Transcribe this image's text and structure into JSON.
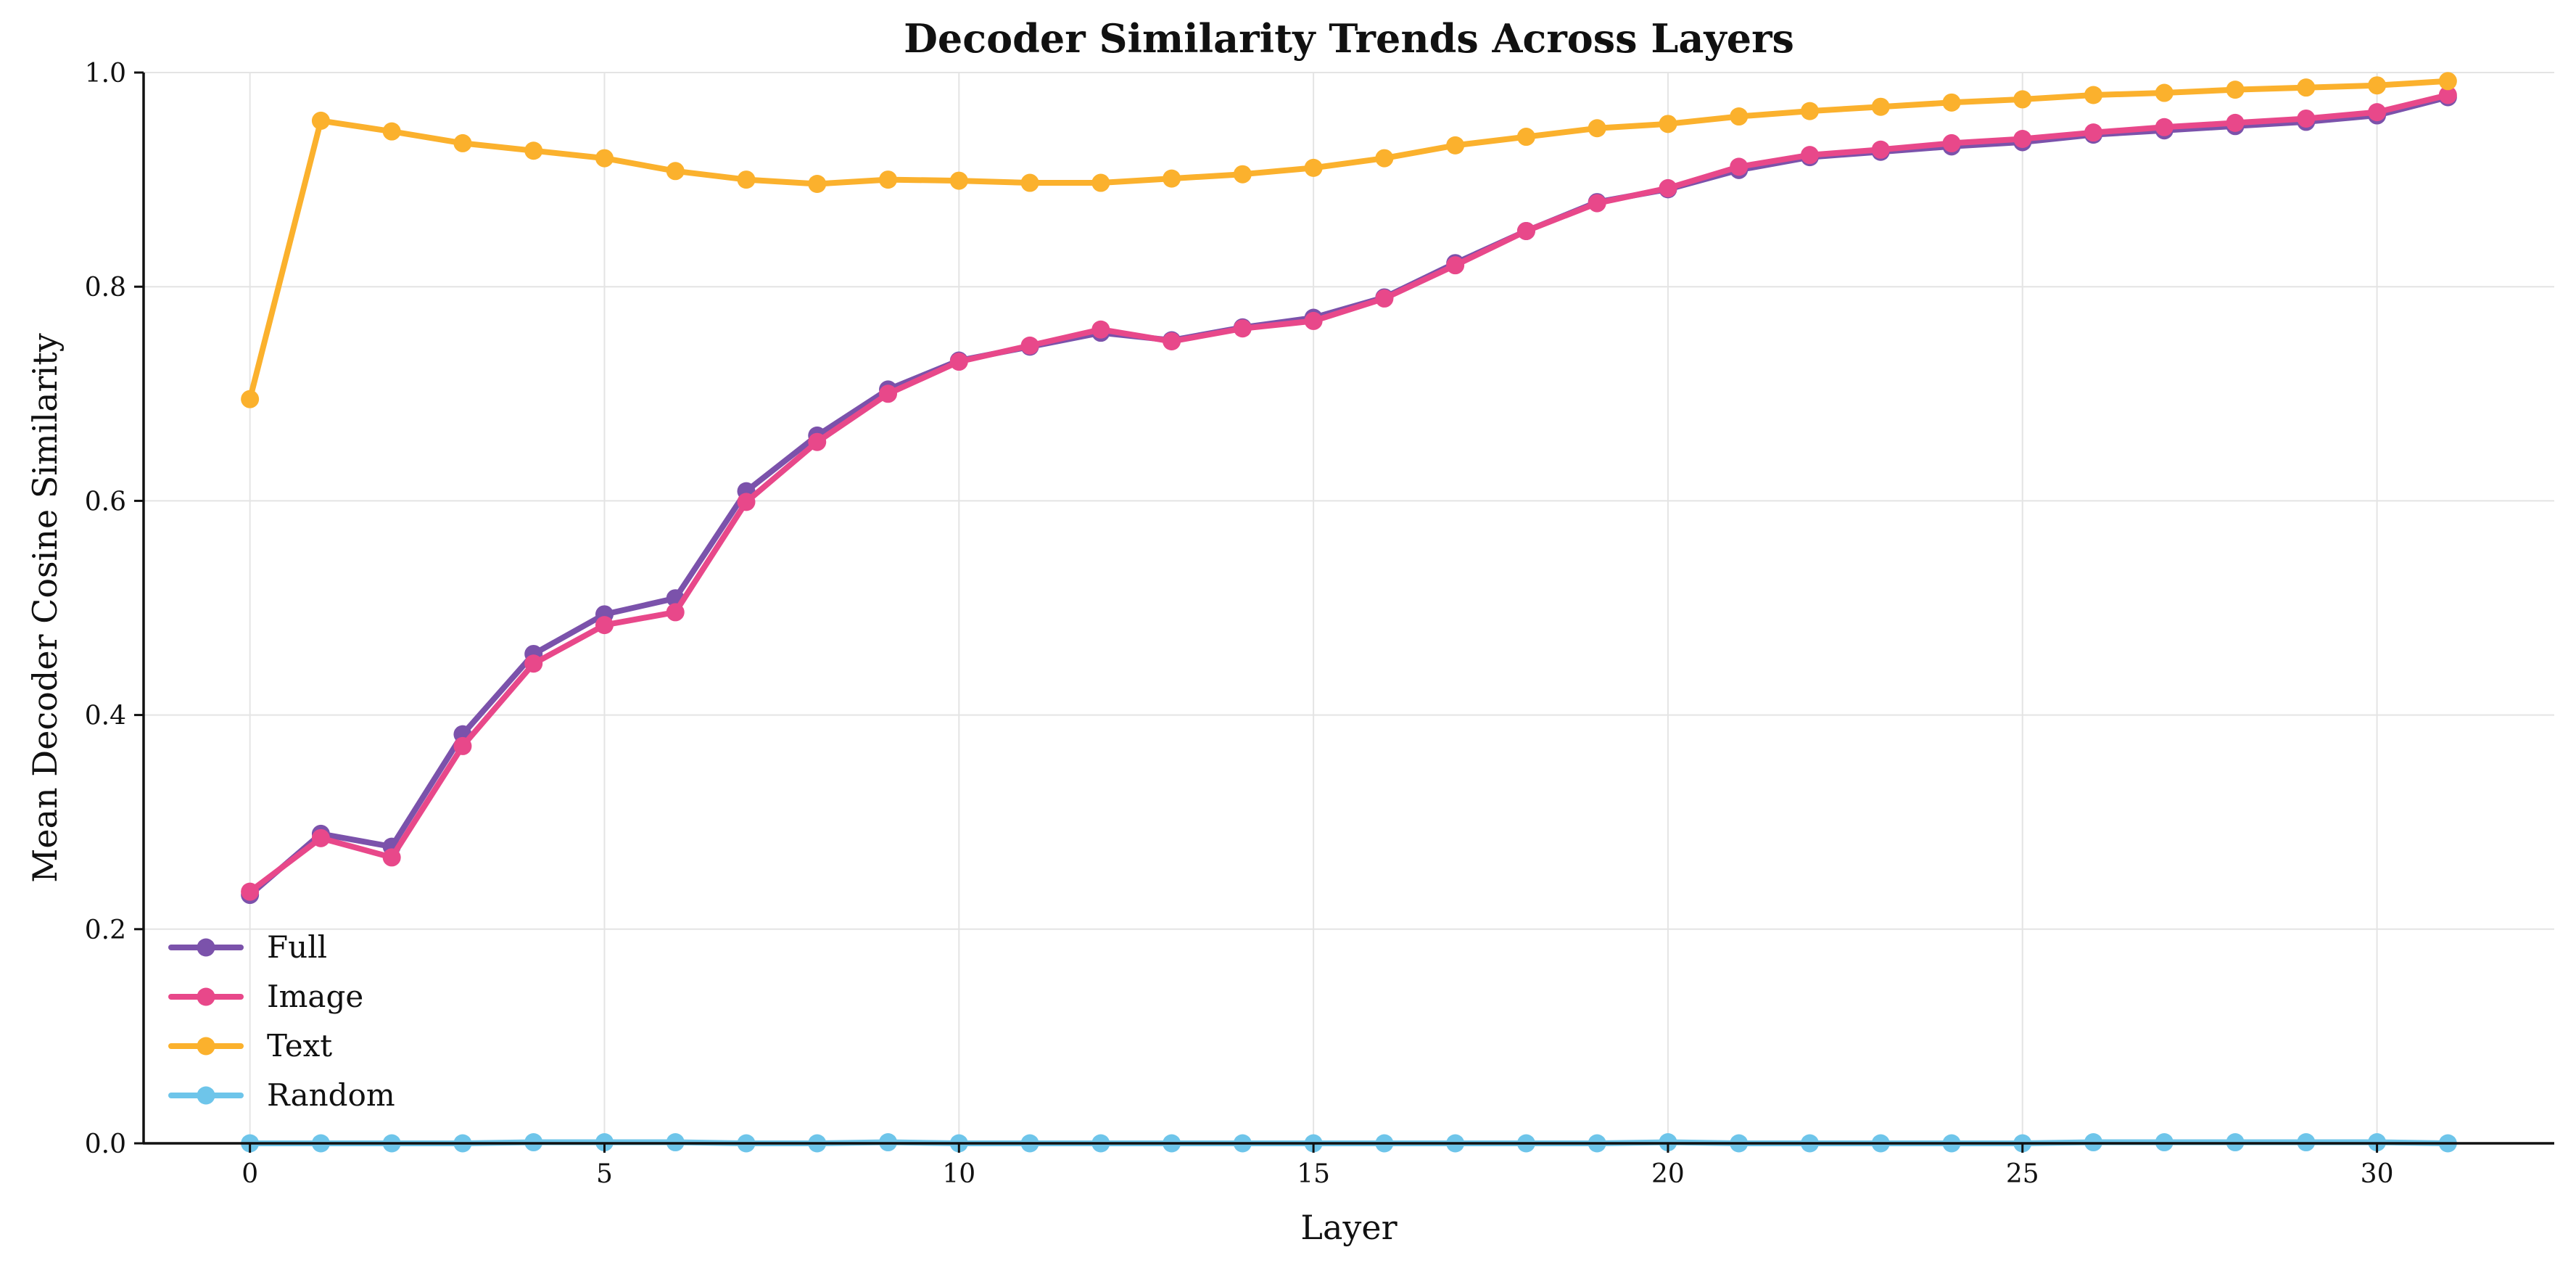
{
  "chart_data": {
    "type": "line",
    "title": "Decoder Similarity Trends Across Layers",
    "xlabel": "Layer",
    "ylabel": "Mean Decoder Cosine Similarity",
    "xlim": [
      -1.5,
      32.5
    ],
    "ylim": [
      0,
      1.0
    ],
    "xticks": [
      "0",
      "5",
      "10",
      "15",
      "20",
      "25",
      "30"
    ],
    "yticks": [
      "0.0",
      "0.2",
      "0.4",
      "0.6",
      "0.8",
      "1.0"
    ],
    "grid": true,
    "legend_position": "lower-left",
    "x": [
      0,
      1,
      2,
      3,
      4,
      5,
      6,
      7,
      8,
      9,
      10,
      11,
      12,
      13,
      14,
      15,
      16,
      17,
      18,
      19,
      20,
      21,
      22,
      23,
      24,
      25,
      26,
      27,
      28,
      29,
      30,
      31
    ],
    "series": [
      {
        "name": "Full",
        "color": "#7b52ab",
        "values": [
          0.232,
          0.289,
          0.277,
          0.382,
          0.457,
          0.494,
          0.509,
          0.609,
          0.661,
          0.704,
          0.731,
          0.744,
          0.757,
          0.75,
          0.762,
          0.771,
          0.79,
          0.822,
          0.852,
          0.879,
          0.891,
          0.909,
          0.921,
          0.926,
          0.931,
          0.935,
          0.942,
          0.946,
          0.95,
          0.954,
          0.96,
          0.977
        ]
      },
      {
        "name": "Image",
        "color": "#e8488a",
        "values": [
          0.235,
          0.285,
          0.267,
          0.371,
          0.448,
          0.484,
          0.496,
          0.599,
          0.655,
          0.7,
          0.73,
          0.745,
          0.76,
          0.749,
          0.761,
          0.768,
          0.789,
          0.82,
          0.852,
          0.878,
          0.892,
          0.912,
          0.923,
          0.928,
          0.934,
          0.938,
          0.944,
          0.949,
          0.953,
          0.957,
          0.963,
          0.979
        ]
      },
      {
        "name": "Text",
        "color": "#fbb12d",
        "values": [
          0.695,
          0.955,
          0.945,
          0.934,
          0.927,
          0.92,
          0.908,
          0.9,
          0.896,
          0.9,
          0.899,
          0.897,
          0.897,
          0.901,
          0.905,
          0.911,
          0.92,
          0.932,
          0.94,
          0.948,
          0.952,
          0.959,
          0.964,
          0.968,
          0.972,
          0.975,
          0.979,
          0.981,
          0.984,
          0.986,
          0.988,
          0.992
        ]
      },
      {
        "name": "Random",
        "color": "#6ec5ea",
        "values": [
          0.0,
          0.0,
          0.0,
          0.0,
          0.001,
          0.001,
          0.001,
          0.0,
          0.0,
          0.001,
          0.0,
          0.0,
          0.0,
          0.0,
          0.0,
          0.0,
          0.0,
          0.0,
          0.0,
          0.0,
          0.001,
          0.0,
          0.0,
          0.0,
          0.0,
          0.0,
          0.001,
          0.001,
          0.001,
          0.001,
          0.001,
          0.0
        ]
      }
    ]
  }
}
